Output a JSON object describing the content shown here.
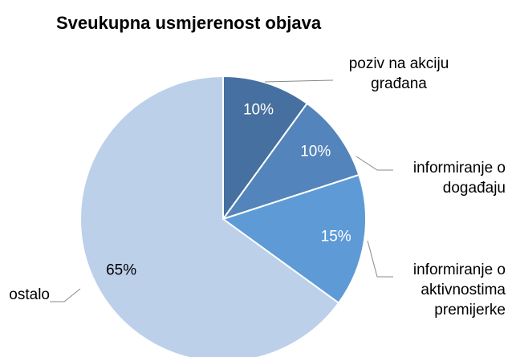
{
  "chart_data": {
    "type": "pie",
    "title": "Sveukupna usmjerenost objava",
    "categories": [
      "poziv na akciju građana",
      "informiranje o događaju",
      "informiranje o aktivnostima premijerke",
      "ostalo"
    ],
    "values": [
      10,
      10,
      15,
      65
    ],
    "value_labels": [
      "10%",
      "10%",
      "15%",
      "65%"
    ],
    "colors": [
      "#46709f",
      "#5384bb",
      "#5e9bd6",
      "#bcd0ea"
    ]
  }
}
